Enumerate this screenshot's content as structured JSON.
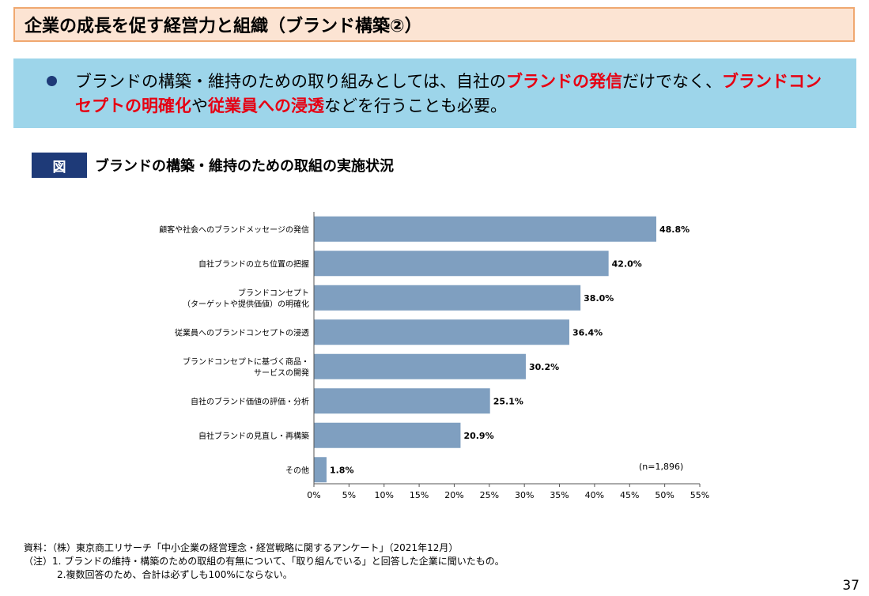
{
  "header": {
    "title": "企業の成長を促す経営力と組織（ブランド構築②）"
  },
  "summary": {
    "parts": [
      {
        "text": "ブランドの構築・維持のための取り組みとしては、自社の",
        "hl": false
      },
      {
        "text": "ブランドの発信",
        "hl": true
      },
      {
        "text": "だけでなく、",
        "hl": false
      },
      {
        "text": "ブランドコンセプトの明確化",
        "hl": true
      },
      {
        "text": "や",
        "hl": false
      },
      {
        "text": "従業員への浸透",
        "hl": true
      },
      {
        "text": "などを行うことも必要。",
        "hl": false
      }
    ]
  },
  "figure": {
    "label": "図",
    "title": "ブランドの構築・維持のための取組の実施状況"
  },
  "chart_data": {
    "type": "bar",
    "orientation": "horizontal",
    "categories": [
      [
        "顧客や社会へのブランドメッセージの発信"
      ],
      [
        "自社ブランドの立ち位置の把握"
      ],
      [
        "ブランドコンセプト",
        "（ターゲットや提供価値）の明確化"
      ],
      [
        "従業員へのブランドコンセプトの浸透"
      ],
      [
        "ブランドコンセプトに基づく商品・",
        "サービスの開発"
      ],
      [
        "自社のブランド価値の評価・分析"
      ],
      [
        "自社ブランドの見直し・再構築"
      ],
      [
        "その他"
      ]
    ],
    "values": [
      48.8,
      42.0,
      38.0,
      36.4,
      30.2,
      25.1,
      20.9,
      1.8
    ],
    "value_labels": [
      "48.8%",
      "42.0%",
      "38.0%",
      "36.4%",
      "30.2%",
      "25.1%",
      "20.9%",
      "1.8%"
    ],
    "xlim": [
      0,
      55
    ],
    "xticks": [
      0,
      5,
      10,
      15,
      20,
      25,
      30,
      35,
      40,
      45,
      50,
      55
    ],
    "xtick_labels": [
      "0%",
      "5%",
      "10%",
      "15%",
      "20%",
      "25%",
      "30%",
      "35%",
      "40%",
      "45%",
      "50%",
      "55%"
    ],
    "bar_color": "#7f9fc0",
    "annotation": "(n=1,896)",
    "grid": false
  },
  "footer": {
    "source": "資料：（株）東京商工リサーチ「中小企業の経営理念・経営戦略に関するアンケート」（2021年12月）",
    "note1": "（注）1. ブランドの維持・構築のための取組の有無について、「取り組んでいる」と回答した企業に聞いたもの。",
    "note2": "2.複数回答のため、合計は必ずしも100%にならない。"
  },
  "page_number": "37"
}
